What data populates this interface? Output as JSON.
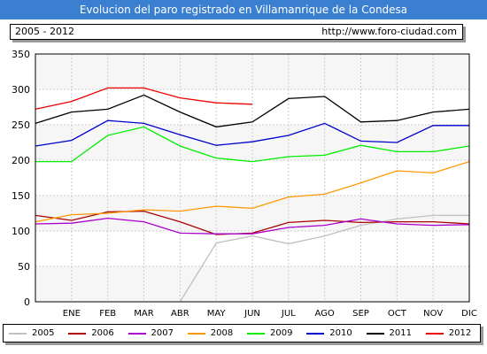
{
  "header": {
    "title": "Evolucion del paro registrado en Villamanrique de la Condesa",
    "range": "2005 - 2012",
    "url": "http://www.foro-ciudad.com"
  },
  "chart_data": {
    "type": "line",
    "categories": [
      "",
      "ENE",
      "FEB",
      "MAR",
      "ABR",
      "MAY",
      "JUN",
      "JUL",
      "AGO",
      "SEP",
      "OCT",
      "NOV",
      "DIC"
    ],
    "ylim": [
      0,
      350
    ],
    "yticks": [
      0,
      50,
      100,
      150,
      200,
      250,
      300,
      350
    ],
    "grid": true,
    "legend_position": "bottom",
    "series": [
      {
        "name": "2005",
        "color": "#c0c0c0",
        "values": [
          null,
          null,
          null,
          null,
          0,
          83,
          93,
          82,
          93,
          108,
          117,
          122,
          122
        ]
      },
      {
        "name": "2006",
        "color": "#aa0000",
        "values": [
          122,
          115,
          127,
          128,
          113,
          95,
          97,
          112,
          115,
          112,
          113,
          113,
          110
        ]
      },
      {
        "name": "2007",
        "color": "#aa00cc",
        "values": [
          110,
          111,
          118,
          113,
          97,
          96,
          96,
          105,
          108,
          117,
          110,
          108,
          109
        ]
      },
      {
        "name": "2008",
        "color": "#ff9900",
        "values": [
          113,
          123,
          125,
          130,
          128,
          135,
          132,
          148,
          152,
          168,
          185,
          182,
          198
        ]
      },
      {
        "name": "2009",
        "color": "#00ee00",
        "values": [
          198,
          198,
          235,
          247,
          220,
          203,
          198,
          205,
          207,
          221,
          212,
          212,
          220
        ]
      },
      {
        "name": "2010",
        "color": "#0000cc",
        "values": [
          220,
          228,
          256,
          252,
          236,
          221,
          226,
          235,
          252,
          227,
          225,
          249,
          249
        ]
      },
      {
        "name": "2011",
        "color": "#000000",
        "values": [
          252,
          268,
          272,
          292,
          268,
          247,
          254,
          287,
          290,
          254,
          256,
          268,
          272
        ]
      },
      {
        "name": "2012",
        "color": "#ee0000",
        "values": [
          272,
          283,
          302,
          302,
          288,
          281,
          279,
          null,
          null,
          null,
          null,
          null,
          null
        ]
      }
    ]
  }
}
